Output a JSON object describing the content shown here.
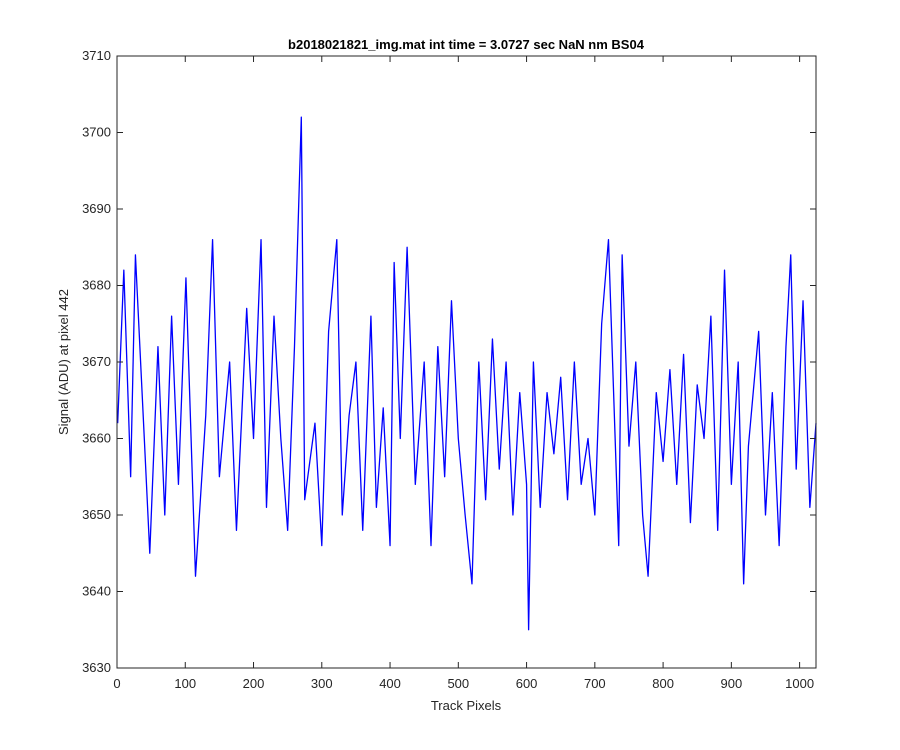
{
  "chart_data": {
    "type": "line",
    "title": "b2018021821_img.mat int time = 3.0727 sec  NaN nm BS04",
    "xlabel": "Track Pixels",
    "ylabel": "Signal (ADU) at pixel 442",
    "xlim": [
      0,
      1024
    ],
    "ylim": [
      3630,
      3710
    ],
    "xticks": [
      0,
      100,
      200,
      300,
      400,
      500,
      600,
      700,
      800,
      900,
      1000
    ],
    "yticks": [
      3630,
      3640,
      3650,
      3660,
      3670,
      3680,
      3690,
      3700,
      3710
    ],
    "grid": false,
    "line_color": "#0000ff",
    "series": [
      {
        "x": [
          1,
          10,
          20,
          27,
          40,
          48,
          60,
          70,
          80,
          90,
          101,
          115,
          130,
          140,
          150,
          165,
          175,
          190,
          200,
          211,
          219,
          230,
          240,
          250,
          260,
          270,
          275,
          290,
          300,
          310,
          322,
          330,
          340,
          350,
          360,
          372,
          380,
          390,
          400,
          406,
          415,
          425,
          437,
          450,
          460,
          470,
          480,
          490,
          500,
          510,
          520,
          530,
          540,
          550,
          560,
          570,
          580,
          590,
          600,
          603,
          610,
          620,
          630,
          640,
          650,
          660,
          670,
          680,
          690,
          700,
          710,
          720,
          735,
          740,
          750,
          760,
          770,
          778,
          790,
          800,
          810,
          820,
          830,
          840,
          850,
          860,
          870,
          880,
          890,
          900,
          910,
          918,
          925,
          940,
          950,
          960,
          970,
          980,
          987,
          995,
          1005,
          1015,
          1024
        ],
        "y": [
          3662,
          3682,
          3655,
          3684,
          3660,
          3645,
          3672,
          3650,
          3676,
          3654,
          3681,
          3642,
          3663,
          3686,
          3655,
          3670,
          3648,
          3677,
          3660,
          3686,
          3651,
          3676,
          3660,
          3648,
          3672,
          3702,
          3652,
          3662,
          3646,
          3674,
          3686,
          3650,
          3663,
          3670,
          3648,
          3676,
          3651,
          3664,
          3646,
          3683,
          3660,
          3685,
          3654,
          3670,
          3646,
          3672,
          3655,
          3678,
          3660,
          3650,
          3641,
          3670,
          3652,
          3673,
          3656,
          3670,
          3650,
          3666,
          3654,
          3635,
          3670,
          3651,
          3666,
          3658,
          3668,
          3652,
          3670,
          3654,
          3660,
          3650,
          3675,
          3686,
          3646,
          3684,
          3659,
          3670,
          3650,
          3642,
          3666,
          3657,
          3669,
          3654,
          3671,
          3649,
          3667,
          3660,
          3676,
          3648,
          3682,
          3654,
          3670,
          3641,
          3659,
          3674,
          3650,
          3666,
          3646,
          3672,
          3684,
          3656,
          3678,
          3651,
          3662
        ]
      }
    ]
  }
}
